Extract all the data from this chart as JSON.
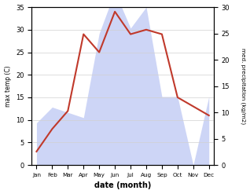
{
  "months": [
    "Jan",
    "Feb",
    "Mar",
    "Apr",
    "May",
    "Jun",
    "Jul",
    "Aug",
    "Sep",
    "Oct",
    "Nov",
    "Dec"
  ],
  "max_temp": [
    3,
    8,
    12,
    29,
    25,
    34,
    29,
    30,
    29,
    15,
    13,
    11
  ],
  "precipitation": [
    8,
    11,
    10,
    9,
    25,
    33,
    26,
    30,
    13,
    13,
    0,
    13
  ],
  "temp_color": "#c0392b",
  "precip_fill_color": "#c5cef5",
  "precip_fill_alpha": 0.85,
  "temp_ylim": [
    0,
    35
  ],
  "precip_ylim": [
    0,
    30
  ],
  "left_yticks": [
    0,
    5,
    10,
    15,
    20,
    25,
    30,
    35
  ],
  "right_yticks": [
    0,
    5,
    10,
    15,
    20,
    25,
    30
  ],
  "xlabel": "date (month)",
  "ylabel_left": "max temp (C)",
  "ylabel_right": "med. precipitation (kg/m2)",
  "bg_color": "#ffffff",
  "grid_color": "#d0d0d0"
}
